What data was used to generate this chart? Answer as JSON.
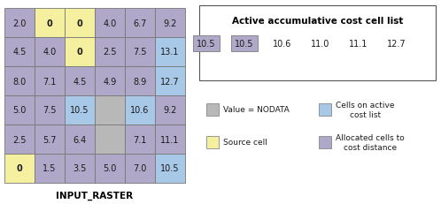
{
  "grid_values": [
    [
      "2.0",
      "0",
      "0",
      "4.0",
      "6.7",
      "9.2"
    ],
    [
      "4.5",
      "4.0",
      "0",
      "2.5",
      "7.5",
      "13.1"
    ],
    [
      "8.0",
      "7.1",
      "4.5",
      "4.9",
      "8.9",
      "12.7"
    ],
    [
      "5.0",
      "7.5",
      "10.5",
      "",
      "10.6",
      "9.2"
    ],
    [
      "2.5",
      "5.7",
      "6.4",
      "",
      "7.1",
      "11.1"
    ],
    [
      "0",
      "1.5",
      "3.5",
      "5.0",
      "7.0",
      "10.5"
    ]
  ],
  "cell_colors": [
    [
      "purple",
      "yellow",
      "yellow",
      "purple",
      "purple",
      "purple"
    ],
    [
      "purple",
      "purple",
      "yellow",
      "purple",
      "purple",
      "blue"
    ],
    [
      "purple",
      "purple",
      "purple",
      "purple",
      "purple",
      "blue"
    ],
    [
      "purple",
      "purple",
      "blue",
      "gray",
      "blue",
      "purple"
    ],
    [
      "purple",
      "purple",
      "purple",
      "gray",
      "purple",
      "purple"
    ],
    [
      "yellow",
      "purple",
      "purple",
      "purple",
      "purple",
      "blue"
    ]
  ],
  "color_map": {
    "purple": "#b0a8c8",
    "yellow": "#f5f0a0",
    "blue": "#a8c8e8",
    "gray": "#b8b8b8"
  },
  "active_list_title": "Active accumulative cost cell list",
  "active_list_values": [
    "10.5",
    "10.5",
    "10.6",
    "11.0",
    "11.1",
    "12.7"
  ],
  "active_list_box_colors": [
    "#b0a8c8",
    "#b0a8c8",
    "none",
    "none",
    "none",
    "none"
  ],
  "legend_items": [
    {
      "label": "Value = NODATA",
      "color": "#b8b8b8",
      "col": 0
    },
    {
      "label": "Cells on active\ncost list",
      "color": "#a8c8e8",
      "col": 1
    },
    {
      "label": "Source cell",
      "color": "#f5f0a0",
      "col": 0
    },
    {
      "label": "Allocated cells to\ncost distance",
      "color": "#b0a8c8",
      "col": 1
    }
  ],
  "xlabel": "INPUT_RASTER",
  "background": "#ffffff",
  "grid_text_bold_color": "yellow",
  "edge_color": "#777777"
}
